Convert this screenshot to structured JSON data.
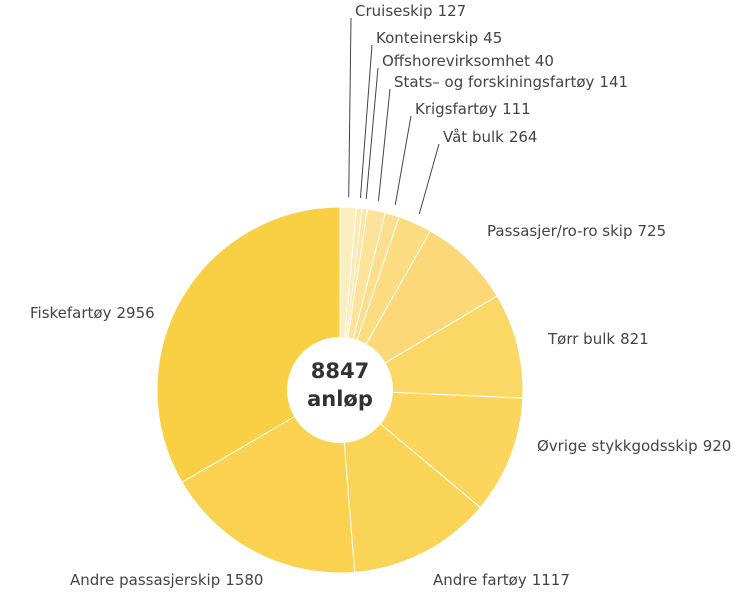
{
  "chart_data": {
    "type": "donut",
    "categories": [
      "Cruiseskip",
      "Konteinerskip",
      "Offshorevirksomhet",
      "Stats– og forskiningsfartøy",
      "Krigsfartøy",
      "Våt bulk",
      "Passasjer/ro-ro skip",
      "Tørr bulk",
      "Øvrige stykkgodsskip",
      "Andre fartøy",
      "Andre passasjerskip",
      "Fiskefartøy"
    ],
    "values": [
      127,
      45,
      40,
      141,
      111,
      264,
      725,
      821,
      920,
      1117,
      1580,
      2956
    ],
    "colors": [
      "#fdeebf",
      "#fde9b0",
      "#fde5a2",
      "#fde29a",
      "#fcdf8e",
      "#fcdc80",
      "#fcd878",
      "#fbd765",
      "#fbd55c",
      "#fad456",
      "#fad24f",
      "#f9cf43"
    ],
    "total": 8847,
    "center_label": "anløp"
  }
}
